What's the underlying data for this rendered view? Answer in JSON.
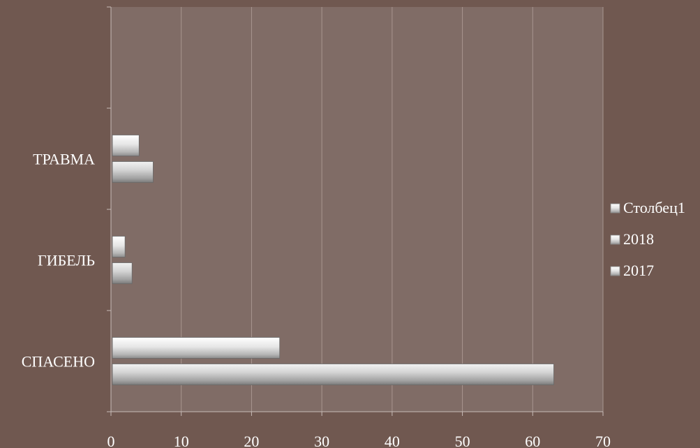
{
  "colors": {
    "background": "#705850",
    "plot_area": "#806c66",
    "gridline": "#a89690",
    "axis": "#c8bcb8",
    "bar_light": "#f4f4f4",
    "bar_dark": "#9a9a9a",
    "text": "#ffffff"
  },
  "chart_data": {
    "type": "bar",
    "orientation": "horizontal",
    "categories": [
      "СПАСЕНО",
      "ГИБЕЛЬ",
      "ТРАВМА"
    ],
    "series": [
      {
        "name": "2017",
        "values": [
          63,
          3,
          6
        ]
      },
      {
        "name": "2018",
        "values": [
          24,
          2,
          4
        ]
      },
      {
        "name": "Столбец1",
        "values": [
          null,
          null,
          null
        ]
      }
    ],
    "xlim": [
      0,
      70
    ],
    "x_ticks": [
      0,
      10,
      20,
      30,
      40,
      50,
      60,
      70
    ],
    "tick_labels": [
      "0",
      "10",
      "20",
      "30",
      "40",
      "50",
      "60",
      "70"
    ],
    "legend": {
      "placement": "right",
      "entries": [
        "Столбец1",
        "2018",
        "2017"
      ]
    },
    "grid": "vertical"
  }
}
